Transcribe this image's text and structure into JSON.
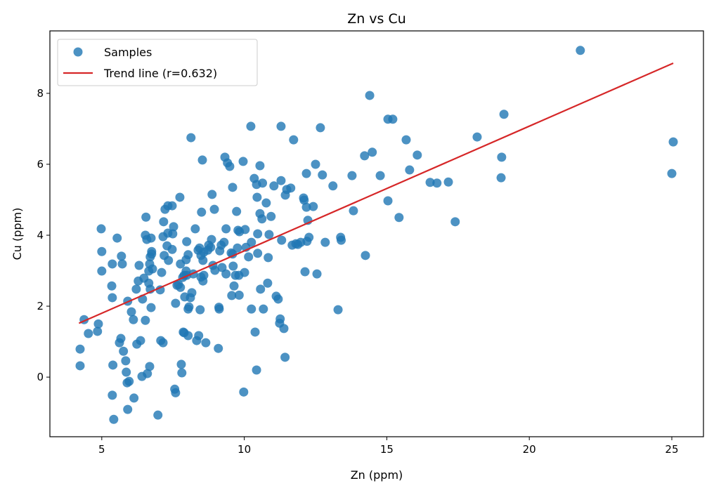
{
  "chart_data": {
    "type": "scatter",
    "title": "Zn vs Cu",
    "xlabel": "Zn (ppm)",
    "ylabel": "Cu (ppm)",
    "xlim": [
      3.18,
      26.11
    ],
    "ylim": [
      -1.68,
      9.76
    ],
    "xticks": [
      5,
      10,
      15,
      20,
      25
    ],
    "yticks": [
      0,
      2,
      4,
      6,
      8
    ],
    "grid": false,
    "legend_position": "top-left",
    "colors": {
      "samples": "#1f77b4",
      "trend": "#d62728"
    },
    "series": [
      {
        "name": "Samples",
        "type": "scatter",
        "points": [
          [
            4.24,
            0.79
          ],
          [
            4.24,
            0.32
          ],
          [
            4.38,
            1.62
          ],
          [
            4.53,
            1.23
          ],
          [
            4.85,
            1.29
          ],
          [
            4.88,
            1.5
          ],
          [
            4.98,
            4.18
          ],
          [
            5.0,
            3.54
          ],
          [
            5.0,
            2.99
          ],
          [
            5.35,
            2.57
          ],
          [
            5.37,
            2.24
          ],
          [
            5.37,
            3.19
          ],
          [
            5.39,
            0.34
          ],
          [
            5.37,
            -0.51
          ],
          [
            5.42,
            -1.19
          ],
          [
            5.54,
            3.92
          ],
          [
            5.62,
            0.97
          ],
          [
            5.67,
            1.09
          ],
          [
            5.69,
            3.41
          ],
          [
            5.72,
            3.19
          ],
          [
            5.76,
            0.73
          ],
          [
            5.84,
            0.46
          ],
          [
            5.86,
            0.14
          ],
          [
            5.89,
            -0.16
          ],
          [
            5.91,
            2.14
          ],
          [
            5.96,
            -0.12
          ],
          [
            5.91,
            -0.91
          ],
          [
            6.04,
            1.84
          ],
          [
            6.11,
            1.62
          ],
          [
            6.13,
            -0.59
          ],
          [
            6.21,
            2.48
          ],
          [
            6.23,
            0.93
          ],
          [
            6.28,
            2.71
          ],
          [
            6.31,
            3.15
          ],
          [
            6.36,
            1.03
          ],
          [
            6.41,
            0.02
          ],
          [
            6.43,
            2.2
          ],
          [
            6.48,
            2.79
          ],
          [
            6.53,
            4.0
          ],
          [
            6.53,
            1.6
          ],
          [
            6.55,
            4.51
          ],
          [
            6.58,
            3.88
          ],
          [
            6.6,
            0.1
          ],
          [
            6.65,
            2.65
          ],
          [
            6.65,
            2.99
          ],
          [
            6.68,
            3.19
          ],
          [
            6.68,
            0.3
          ],
          [
            6.7,
            3.39
          ],
          [
            6.7,
            2.48
          ],
          [
            6.73,
            3.92
          ],
          [
            6.73,
            1.96
          ],
          [
            6.75,
            3.54
          ],
          [
            6.75,
            3.47
          ],
          [
            6.78,
            3.05
          ],
          [
            6.97,
            -1.07
          ],
          [
            7.05,
            2.46
          ],
          [
            7.07,
            1.03
          ],
          [
            7.1,
            2.95
          ],
          [
            7.15,
            3.96
          ],
          [
            7.15,
            0.97
          ],
          [
            7.17,
            4.38
          ],
          [
            7.19,
            3.43
          ],
          [
            7.22,
            4.73
          ],
          [
            7.29,
            3.7
          ],
          [
            7.32,
            4.06
          ],
          [
            7.32,
            4.83
          ],
          [
            7.34,
            3.29
          ],
          [
            7.47,
            3.6
          ],
          [
            7.47,
            4.83
          ],
          [
            7.49,
            4.04
          ],
          [
            7.52,
            4.24
          ],
          [
            7.59,
            2.08
          ],
          [
            7.56,
            -0.34
          ],
          [
            7.59,
            -0.44
          ],
          [
            7.64,
            2.59
          ],
          [
            7.69,
            2.61
          ],
          [
            7.74,
            5.07
          ],
          [
            7.76,
            2.53
          ],
          [
            7.76,
            3.19
          ],
          [
            7.79,
            0.36
          ],
          [
            7.81,
            0.12
          ],
          [
            7.84,
            2.81
          ],
          [
            7.86,
            1.27
          ],
          [
            7.89,
            2.87
          ],
          [
            7.89,
            1.25
          ],
          [
            7.91,
            2.26
          ],
          [
            7.96,
            3.31
          ],
          [
            7.96,
            2.99
          ],
          [
            7.98,
            2.87
          ],
          [
            7.98,
            3.82
          ],
          [
            8.03,
            3.45
          ],
          [
            8.03,
            1.92
          ],
          [
            8.03,
            1.17
          ],
          [
            8.06,
            1.98
          ],
          [
            8.11,
            2.24
          ],
          [
            8.13,
            6.75
          ],
          [
            8.16,
            2.38
          ],
          [
            8.21,
            2.91
          ],
          [
            8.28,
            4.18
          ],
          [
            8.33,
            1.03
          ],
          [
            8.38,
            3.58
          ],
          [
            8.4,
            1.17
          ],
          [
            8.43,
            3.64
          ],
          [
            8.45,
            1.9
          ],
          [
            8.48,
            3.43
          ],
          [
            8.5,
            4.65
          ],
          [
            8.53,
            6.12
          ],
          [
            8.55,
            3.29
          ],
          [
            8.55,
            2.71
          ],
          [
            8.58,
            2.87
          ],
          [
            8.58,
            3.52
          ],
          [
            8.65,
            0.97
          ],
          [
            8.72,
            3.58
          ],
          [
            8.75,
            3.72
          ],
          [
            8.82,
            3.66
          ],
          [
            8.85,
            3.88
          ],
          [
            8.87,
            5.15
          ],
          [
            8.9,
            3.15
          ],
          [
            8.95,
            4.73
          ],
          [
            8.97,
            3.01
          ],
          [
            9.09,
            0.81
          ],
          [
            9.12,
            1.92
          ],
          [
            9.14,
            3.56
          ],
          [
            9.19,
            3.72
          ],
          [
            9.22,
            3.09
          ],
          [
            9.29,
            3.8
          ],
          [
            9.32,
            6.2
          ],
          [
            9.36,
            4.18
          ],
          [
            9.36,
            2.91
          ],
          [
            9.41,
            6.04
          ],
          [
            9.49,
            5.94
          ],
          [
            9.54,
            3.5
          ],
          [
            9.56,
            2.3
          ],
          [
            9.59,
            5.35
          ],
          [
            9.59,
            3.47
          ],
          [
            9.61,
            3.13
          ],
          [
            9.64,
            2.57
          ],
          [
            9.69,
            2.87
          ],
          [
            9.73,
            4.67
          ],
          [
            9.76,
            3.64
          ],
          [
            9.78,
            4.14
          ],
          [
            9.81,
            2.87
          ],
          [
            9.83,
            4.1
          ],
          [
            9.96,
            6.08
          ],
          [
            9.98,
            -0.42
          ],
          [
            10.01,
            2.95
          ],
          [
            10.03,
            4.16
          ],
          [
            10.06,
            3.66
          ],
          [
            10.15,
            3.39
          ],
          [
            10.25,
            3.8
          ],
          [
            10.25,
            1.92
          ],
          [
            10.35,
            5.6
          ],
          [
            10.38,
            1.27
          ],
          [
            10.43,
            5.43
          ],
          [
            10.45,
            5.07
          ],
          [
            10.47,
            4.04
          ],
          [
            10.47,
            3.49
          ],
          [
            10.55,
            4.61
          ],
          [
            10.55,
            5.96
          ],
          [
            10.57,
            2.48
          ],
          [
            10.62,
            4.46
          ],
          [
            10.64,
            5.47
          ],
          [
            10.67,
            1.92
          ],
          [
            10.77,
            4.91
          ],
          [
            10.82,
            2.65
          ],
          [
            10.84,
            3.37
          ],
          [
            10.87,
            4.02
          ],
          [
            10.94,
            4.53
          ],
          [
            11.04,
            5.39
          ],
          [
            11.12,
            2.28
          ],
          [
            11.19,
            2.2
          ],
          [
            11.26,
            1.64
          ],
          [
            11.24,
            1.52
          ],
          [
            11.39,
            1.37
          ],
          [
            11.29,
            5.54
          ],
          [
            11.31,
            3.86
          ],
          [
            11.44,
            5.13
          ],
          [
            11.49,
            5.29
          ],
          [
            11.63,
            5.33
          ],
          [
            11.68,
            3.72
          ],
          [
            11.73,
            6.69
          ],
          [
            11.81,
            3.76
          ],
          [
            11.88,
            3.74
          ],
          [
            11.98,
            3.8
          ],
          [
            12.18,
            5.74
          ],
          [
            12.08,
            5.05
          ],
          [
            12.1,
            4.99
          ],
          [
            12.13,
            2.97
          ],
          [
            12.18,
            4.79
          ],
          [
            12.23,
            4.42
          ],
          [
            12.27,
            3.94
          ],
          [
            12.42,
            4.81
          ],
          [
            12.5,
            6.0
          ],
          [
            12.55,
            2.91
          ],
          [
            12.67,
            7.03
          ],
          [
            12.74,
            5.7
          ],
          [
            12.84,
            3.8
          ],
          [
            13.11,
            5.39
          ],
          [
            13.29,
            1.9
          ],
          [
            13.38,
            3.94
          ],
          [
            13.78,
            5.68
          ],
          [
            13.83,
            4.69
          ],
          [
            14.22,
            6.24
          ],
          [
            14.25,
            3.43
          ],
          [
            14.4,
            7.94
          ],
          [
            14.49,
            6.34
          ],
          [
            14.77,
            5.68
          ],
          [
            15.04,
            4.97
          ],
          [
            15.04,
            7.27
          ],
          [
            15.21,
            7.27
          ],
          [
            15.43,
            4.5
          ],
          [
            15.68,
            6.69
          ],
          [
            15.8,
            5.84
          ],
          [
            16.07,
            6.26
          ],
          [
            16.52,
            5.49
          ],
          [
            16.76,
            5.47
          ],
          [
            17.16,
            5.5
          ],
          [
            17.4,
            4.38
          ],
          [
            18.17,
            6.77
          ],
          [
            19.01,
            5.62
          ],
          [
            19.03,
            6.2
          ],
          [
            19.11,
            7.41
          ],
          [
            21.79,
            9.21
          ],
          [
            25.0,
            5.74
          ],
          [
            25.05,
            6.63
          ],
          [
            10.23,
            7.07
          ],
          [
            11.29,
            7.07
          ],
          [
            13.4,
            3.86
          ],
          [
            12.2,
            3.83
          ],
          [
            11.43,
            0.56
          ],
          [
            10.43,
            0.2
          ],
          [
            9.82,
            2.31
          ],
          [
            9.11,
            1.97
          ],
          [
            8.48,
            2.82
          ]
        ]
      },
      {
        "name": "Trend line (r=0.632)",
        "type": "line",
        "x": [
          4.2,
          25.05
        ],
        "y": [
          1.52,
          8.85
        ]
      }
    ]
  }
}
